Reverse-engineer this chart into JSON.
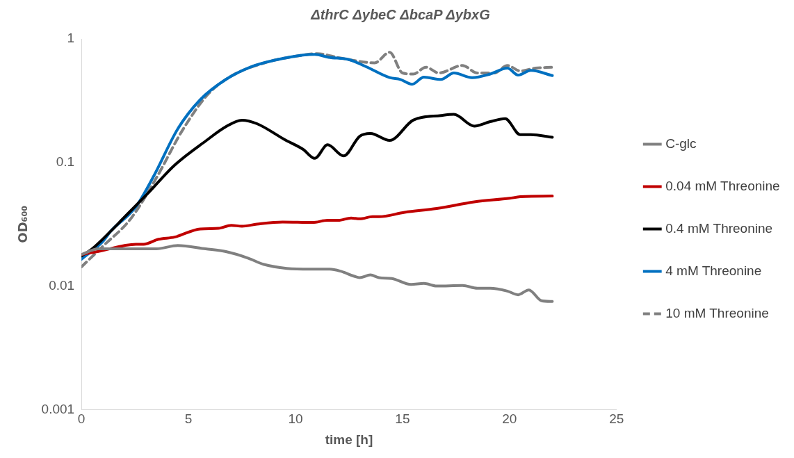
{
  "chart_data": {
    "type": "line",
    "title": "ΔthrC ΔybeC ΔbcaP ΔybxG",
    "xlabel": "time [h]",
    "ylabel": "OD₆₀₀",
    "log": "y",
    "xlim": [
      0,
      25
    ],
    "xticks": [
      0,
      5,
      10,
      15,
      20,
      25
    ],
    "ylim": [
      0.001,
      1
    ],
    "yticks": [
      0.001,
      0.01,
      0.1,
      1
    ],
    "grid": false,
    "legend": "right",
    "marker": "none",
    "series": [
      {
        "name": "C-glc",
        "color": "#808080",
        "line_style": "solid",
        "x": [
          0,
          0.8,
          2,
          3.5,
          4.5,
          5.8,
          6.75,
          7.8,
          8.5,
          9.6,
          10.7,
          11.6,
          12.1,
          12.75,
          13.0,
          13.5,
          13.9,
          14.5,
          15.4,
          16.0,
          16.6,
          17.8,
          18.5,
          19.1,
          19.9,
          20.4,
          20.9,
          21.5,
          22.0
        ],
        "values": [
          0.018,
          0.02,
          0.02,
          0.02,
          0.0213,
          0.02,
          0.019,
          0.0168,
          0.015,
          0.0139,
          0.0137,
          0.0137,
          0.0132,
          0.012,
          0.0117,
          0.0123,
          0.0117,
          0.0115,
          0.0103,
          0.0105,
          0.01,
          0.0101,
          0.0096,
          0.0096,
          0.0091,
          0.0085,
          0.0093,
          0.0076,
          0.0075
        ]
      },
      {
        "name": "0.04 mM Threonine",
        "color": "#c00000",
        "line_style": "solid",
        "x": [
          0,
          0.75,
          2.55,
          2.9,
          3.6,
          4.35,
          5.55,
          6.4,
          7.0,
          7.5,
          8.2,
          9.4,
          10.8,
          11.5,
          12.0,
          12.6,
          13.0,
          13.6,
          13.9,
          15.1,
          16.6,
          18.35,
          20.0,
          20.5,
          22.0
        ],
        "values": [
          0.018,
          0.019,
          0.0218,
          0.0218,
          0.0239,
          0.0249,
          0.029,
          0.0293,
          0.031,
          0.0305,
          0.0317,
          0.033,
          0.0327,
          0.034,
          0.034,
          0.0355,
          0.035,
          0.0364,
          0.0364,
          0.0395,
          0.0424,
          0.048,
          0.0513,
          0.0528,
          0.0535
        ]
      },
      {
        "name": "0.4 mM Threonine",
        "color": "#000000",
        "line_style": "solid",
        "x": [
          0,
          0.5,
          1.36,
          2,
          3.05,
          4.35,
          5.8,
          6.75,
          7.5,
          8.2,
          9.5,
          10.35,
          10.9,
          11.5,
          12.25,
          13.0,
          13.5,
          14.4,
          15.5,
          16.8,
          17.4,
          18.35,
          19.1,
          19.8,
          20.5,
          21.0,
          22.0
        ],
        "values": [
          0.0175,
          0.02,
          0.0277,
          0.036,
          0.055,
          0.095,
          0.149,
          0.195,
          0.22,
          0.206,
          0.153,
          0.128,
          0.108,
          0.139,
          0.113,
          0.163,
          0.172,
          0.151,
          0.22,
          0.24,
          0.245,
          0.197,
          0.214,
          0.226,
          0.168,
          0.168,
          0.16
        ]
      },
      {
        "name": "4 mM Threonine",
        "color": "#0070c0",
        "line_style": "solid",
        "x": [
          0,
          1,
          1.36,
          2.55,
          3.4,
          4.5,
          5.55,
          6.75,
          7.95,
          9.15,
          10.35,
          10.9,
          11.55,
          12.5,
          13.3,
          14.4,
          14.9,
          15.45,
          16.0,
          16.8,
          17.4,
          18.25,
          19.1,
          19.9,
          20.4,
          21.0,
          22.0
        ],
        "values": [
          0.0165,
          0.023,
          0.0277,
          0.044,
          0.079,
          0.187,
          0.322,
          0.47,
          0.596,
          0.68,
          0.74,
          0.75,
          0.71,
          0.68,
          0.596,
          0.486,
          0.47,
          0.43,
          0.49,
          0.47,
          0.53,
          0.486,
          0.52,
          0.58,
          0.51,
          0.556,
          0.505
        ]
      },
      {
        "name": "10 mM Threonine",
        "color": "#808080",
        "line_style": "dashed",
        "x": [
          0,
          1,
          2.3,
          3.5,
          4.7,
          5.9,
          7.0,
          8.55,
          10.35,
          11.0,
          12.1,
          13.7,
          14.4,
          15.0,
          15.5,
          16.1,
          16.7,
          17.8,
          18.5,
          19.3,
          19.9,
          20.5,
          21.2,
          22.0
        ],
        "values": [
          0.0143,
          0.021,
          0.035,
          0.075,
          0.18,
          0.355,
          0.5,
          0.64,
          0.74,
          0.76,
          0.7,
          0.64,
          0.78,
          0.53,
          0.52,
          0.59,
          0.53,
          0.61,
          0.53,
          0.53,
          0.61,
          0.55,
          0.58,
          0.59
        ]
      }
    ]
  }
}
